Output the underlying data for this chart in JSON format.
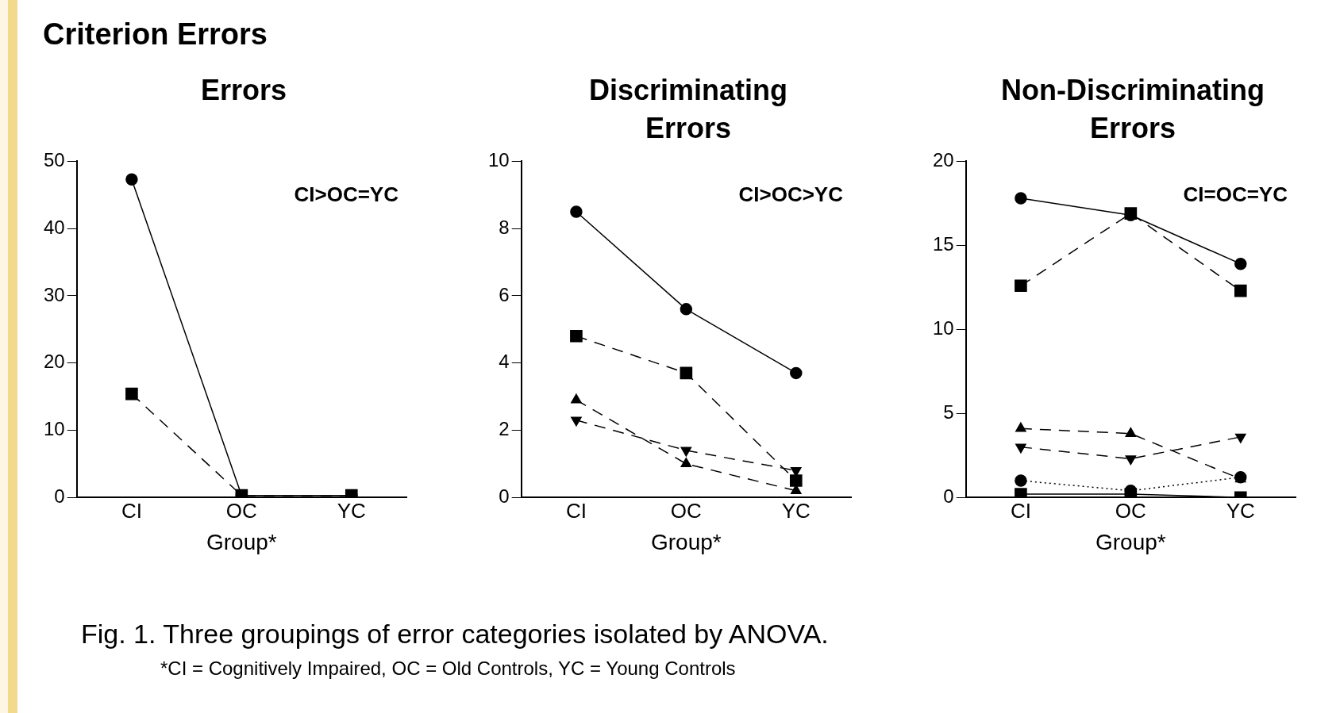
{
  "chart_data": [
    {
      "type": "line",
      "title": "Errors",
      "xlabel": "Group*",
      "categories": [
        "CI",
        "OC",
        "YC"
      ],
      "ylim": [
        0,
        50
      ],
      "yticks": [
        0,
        10,
        20,
        30,
        40,
        50
      ],
      "legend": false,
      "annotations": [
        "CI>OC=YC",
        "Criterion Errors",
        "Fig. 1.  Three groupings of error categories isolated by ANOVA.",
        "*CI = Cognitively Impaired, OC = Old Controls, YC = Young Controls"
      ],
      "series": [
        {
          "color": "#000000",
          "values": [
            47.3,
            0.3,
            0.3
          ],
          "marker": "circle",
          "line_style": "solid"
        },
        {
          "color": "#000000",
          "values": [
            15.4,
            0.3,
            0.3
          ],
          "marker": "square",
          "line_style": "dashed"
        }
      ]
    },
    {
      "type": "line",
      "title": "Discriminating Errors",
      "xlabel": "Group*",
      "categories": [
        "CI",
        "OC",
        "YC"
      ],
      "ylim": [
        0,
        10
      ],
      "yticks": [
        0,
        2,
        4,
        6,
        8,
        10
      ],
      "legend": false,
      "annotations": [
        "CI>OC>YC"
      ],
      "series": [
        {
          "color": "#000000",
          "values": [
            8.5,
            5.6,
            3.7
          ],
          "marker": "circle",
          "line_style": "solid"
        },
        {
          "color": "#000000",
          "values": [
            4.8,
            3.7,
            0.5
          ],
          "marker": "square",
          "line_style": "dashed"
        },
        {
          "color": "#000000",
          "values": [
            2.9,
            1.0,
            0.2
          ],
          "marker": "triangle",
          "line_style": "dashed"
        },
        {
          "color": "#000000",
          "values": [
            2.3,
            1.4,
            0.8
          ],
          "marker": "triangle_down",
          "line_style": "dashed"
        }
      ]
    },
    {
      "type": "line",
      "title": "Non-Discriminating Errors",
      "xlabel": "Group*",
      "categories": [
        "CI",
        "OC",
        "YC"
      ],
      "ylim": [
        0,
        20
      ],
      "yticks": [
        0,
        5,
        10,
        15,
        20
      ],
      "legend": false,
      "annotations": [
        "CI=OC=YC"
      ],
      "series": [
        {
          "color": "#000000",
          "values": [
            17.8,
            16.8,
            13.9
          ],
          "marker": "circle",
          "line_style": "solid"
        },
        {
          "color": "#000000",
          "values": [
            12.6,
            16.9,
            12.3
          ],
          "marker": "square",
          "line_style": "dashed"
        },
        {
          "color": "#000000",
          "values": [
            4.1,
            3.8,
            1.1
          ],
          "marker": "triangle",
          "line_style": "dashed"
        },
        {
          "color": "#000000",
          "values": [
            3.0,
            2.3,
            3.6
          ],
          "marker": "triangle_down",
          "line_style": "dashed"
        },
        {
          "color": "#000000",
          "values": [
            1.0,
            0.4,
            1.2
          ],
          "marker": "circle",
          "line_style": "dotted"
        },
        {
          "color": "#000000",
          "values": [
            0.2,
            0.2,
            0.0
          ],
          "marker": "square",
          "line_style": "solid"
        }
      ]
    }
  ]
}
